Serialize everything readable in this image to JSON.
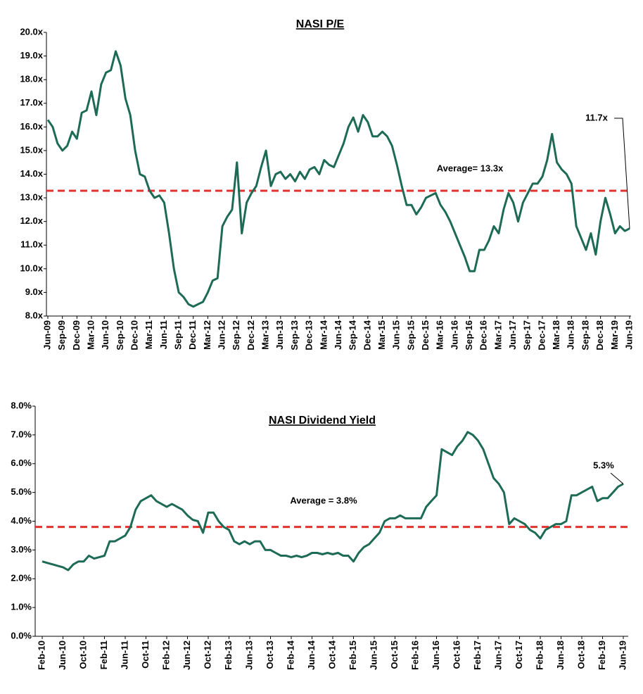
{
  "chart_data": [
    {
      "type": "line",
      "title": "NASI P/E",
      "categories": [
        "Jun-09",
        null,
        null,
        "Sep-09",
        null,
        null,
        "Dec-09",
        null,
        null,
        "Mar-10",
        null,
        null,
        "Jun-10",
        null,
        null,
        "Sep-10",
        null,
        null,
        "Dec-10",
        null,
        null,
        "Mar-11",
        null,
        null,
        "Jun-11",
        null,
        null,
        "Sep-11",
        null,
        null,
        "Dec-11",
        null,
        null,
        "Mar-12",
        null,
        null,
        "Jun-12",
        null,
        null,
        "Sep-12",
        null,
        null,
        "Dec-12",
        null,
        null,
        "Mar-13",
        null,
        null,
        "Jun-13",
        null,
        null,
        "Sep-13",
        null,
        null,
        "Dec-13",
        null,
        null,
        "Mar-14",
        null,
        null,
        "Jun-14",
        null,
        null,
        "Sep-14",
        null,
        null,
        "Dec-14",
        null,
        null,
        "Mar-15",
        null,
        null,
        "Jun-15",
        null,
        null,
        "Sep-15",
        null,
        null,
        "Dec-15",
        null,
        null,
        "Mar-16",
        null,
        null,
        "Jun-16",
        null,
        null,
        "Sep-16",
        null,
        null,
        "Dec-16",
        null,
        null,
        "Mar-17",
        null,
        null,
        "Jun-17",
        null,
        null,
        "Sep-17",
        null,
        null,
        "Dec-17",
        null,
        null,
        "Mar-18",
        null,
        null,
        "Jun-18",
        null,
        null,
        "Sep-18",
        null,
        null,
        "Dec-18",
        null,
        null,
        "Mar-19",
        null,
        null,
        "Jun-19"
      ],
      "values": [
        16.3,
        16.0,
        15.3,
        15.0,
        15.2,
        15.8,
        15.5,
        16.6,
        16.7,
        17.5,
        16.5,
        17.8,
        18.3,
        18.4,
        19.2,
        18.6,
        17.2,
        16.5,
        15.0,
        14.0,
        13.9,
        13.3,
        13.0,
        13.1,
        12.8,
        11.5,
        10.0,
        9.0,
        8.8,
        8.5,
        8.4,
        8.5,
        8.6,
        9.0,
        9.5,
        9.6,
        11.8,
        12.2,
        12.5,
        14.5,
        11.5,
        12.8,
        13.2,
        13.5,
        14.3,
        15.0,
        13.5,
        14.0,
        14.1,
        13.8,
        14.0,
        13.7,
        14.1,
        13.8,
        14.2,
        14.3,
        14.0,
        14.6,
        14.4,
        14.3,
        14.8,
        15.3,
        16.0,
        16.4,
        15.8,
        16.5,
        16.2,
        15.6,
        15.6,
        15.8,
        15.6,
        15.2,
        14.4,
        13.5,
        12.7,
        12.7,
        12.3,
        12.6,
        13.0,
        13.1,
        13.2,
        12.7,
        12.4,
        12.0,
        11.5,
        11.0,
        10.5,
        9.9,
        9.9,
        10.8,
        10.8,
        11.2,
        11.8,
        11.5,
        12.5,
        13.2,
        12.8,
        12.0,
        12.8,
        13.2,
        13.6,
        13.6,
        13.9,
        14.6,
        15.7,
        14.5,
        14.2,
        14.0,
        13.6,
        11.8,
        11.3,
        10.8,
        11.5,
        10.6,
        12.0,
        13.0,
        12.3,
        11.5,
        11.8,
        11.6,
        11.7
      ],
      "color": "#1d6b55",
      "ylim": [
        8,
        20
      ],
      "yticks": [
        {
          "value": 8,
          "label": "8.0x"
        },
        {
          "value": 9,
          "label": "9.0x"
        },
        {
          "value": 10,
          "label": "10.0x"
        },
        {
          "value": 11,
          "label": "11.0x"
        },
        {
          "value": 12,
          "label": "12.0x"
        },
        {
          "value": 13,
          "label": "13.0x"
        },
        {
          "value": 14,
          "label": "14.0x"
        },
        {
          "value": 15,
          "label": "15.0x"
        },
        {
          "value": 16,
          "label": "16.0x"
        },
        {
          "value": 17,
          "label": "17.0x"
        },
        {
          "value": 18,
          "label": "18.0x"
        },
        {
          "value": 19,
          "label": "19.0x"
        },
        {
          "value": 20,
          "label": "20.0x"
        }
      ],
      "average": {
        "value": 13.3,
        "label": "Average= 13.3x",
        "color": "#e8302f"
      },
      "end_label": "11.7x",
      "grid": false
    },
    {
      "type": "line",
      "title": "NASI Dividend Yield",
      "categories": [
        "Feb-10",
        null,
        null,
        null,
        "Jun-10",
        null,
        null,
        null,
        "Oct-10",
        null,
        null,
        null,
        "Feb-11",
        null,
        null,
        null,
        "Jun-11",
        null,
        null,
        null,
        "Oct-11",
        null,
        null,
        null,
        "Feb-12",
        null,
        null,
        null,
        "Jun-12",
        null,
        null,
        null,
        "Oct-12",
        null,
        null,
        null,
        "Feb-13",
        null,
        null,
        null,
        "Jun-13",
        null,
        null,
        null,
        "Oct-13",
        null,
        null,
        null,
        "Feb-14",
        null,
        null,
        null,
        "Jun-14",
        null,
        null,
        null,
        "Oct-14",
        null,
        null,
        null,
        "Feb-15",
        null,
        null,
        null,
        "Jun-15",
        null,
        null,
        null,
        "Oct-15",
        null,
        null,
        null,
        "Feb-16",
        null,
        null,
        null,
        "Jun-16",
        null,
        null,
        null,
        "Oct-16",
        null,
        null,
        null,
        "Feb-17",
        null,
        null,
        null,
        "Jun-17",
        null,
        null,
        null,
        "Oct-17",
        null,
        null,
        null,
        "Feb-18",
        null,
        null,
        null,
        "Jun-18",
        null,
        null,
        null,
        "Oct-18",
        null,
        null,
        null,
        "Feb-19",
        null,
        null,
        null,
        "Jun-19"
      ],
      "values": [
        2.6,
        2.55,
        2.5,
        2.45,
        2.4,
        2.3,
        2.5,
        2.6,
        2.6,
        2.8,
        2.7,
        2.75,
        2.8,
        3.3,
        3.3,
        3.4,
        3.5,
        3.8,
        4.4,
        4.7,
        4.8,
        4.9,
        4.7,
        4.6,
        4.5,
        4.6,
        4.5,
        4.4,
        4.2,
        4.05,
        4.0,
        3.6,
        4.3,
        4.3,
        4.0,
        3.8,
        3.7,
        3.3,
        3.2,
        3.3,
        3.2,
        3.3,
        3.3,
        3.0,
        3.0,
        2.9,
        2.8,
        2.8,
        2.75,
        2.8,
        2.75,
        2.8,
        2.9,
        2.9,
        2.85,
        2.9,
        2.85,
        2.9,
        2.8,
        2.8,
        2.6,
        2.9,
        3.1,
        3.2,
        3.4,
        3.6,
        4.0,
        4.1,
        4.1,
        4.2,
        4.1,
        4.1,
        4.1,
        4.1,
        4.5,
        4.7,
        4.9,
        6.5,
        6.4,
        6.3,
        6.6,
        6.8,
        7.1,
        7.0,
        6.8,
        6.5,
        6.0,
        5.5,
        5.3,
        5.0,
        3.9,
        4.1,
        4.0,
        3.9,
        3.7,
        3.6,
        3.4,
        3.7,
        3.8,
        3.9,
        3.9,
        4.0,
        4.9,
        4.9,
        5.0,
        5.1,
        5.2,
        4.7,
        4.8,
        4.8,
        5.0,
        5.2,
        5.3
      ],
      "color": "#1d6b55",
      "ylim": [
        0,
        8
      ],
      "yticks": [
        {
          "value": 0,
          "label": "0.0%"
        },
        {
          "value": 1,
          "label": "1.0%"
        },
        {
          "value": 2,
          "label": "2.0%"
        },
        {
          "value": 3,
          "label": "3.0%"
        },
        {
          "value": 4,
          "label": "4.0%"
        },
        {
          "value": 5,
          "label": "5.0%"
        },
        {
          "value": 6,
          "label": "6.0%"
        },
        {
          "value": 7,
          "label": "7.0%"
        },
        {
          "value": 8,
          "label": "8.0%"
        }
      ],
      "average": {
        "value": 3.8,
        "label": "Average = 3.8%",
        "color": "#e8302f"
      },
      "end_label": "5.3%",
      "grid": false
    }
  ]
}
